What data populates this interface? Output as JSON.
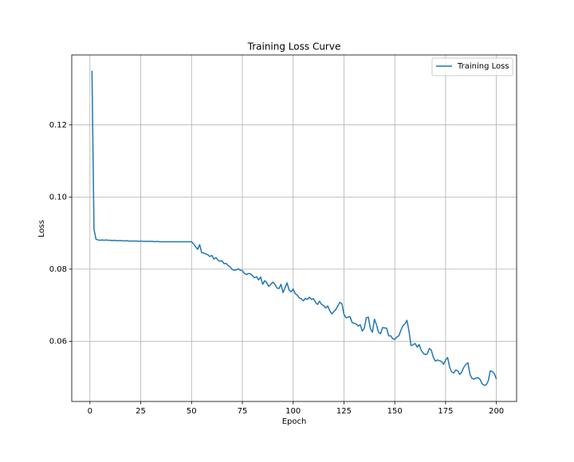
{
  "chart_data": {
    "type": "line",
    "title": "Training Loss Curve",
    "x_label": "Epoch",
    "y_label": "Loss",
    "x": [
      1,
      2,
      3,
      4,
      5,
      6,
      7,
      8,
      9,
      10,
      11,
      12,
      13,
      14,
      15,
      16,
      17,
      18,
      19,
      20,
      21,
      22,
      23,
      24,
      25,
      26,
      27,
      28,
      29,
      30,
      31,
      32,
      33,
      34,
      35,
      36,
      37,
      38,
      39,
      40,
      41,
      42,
      43,
      44,
      45,
      46,
      47,
      48,
      49,
      50,
      51,
      52,
      53,
      54,
      55,
      56,
      57,
      58,
      59,
      60,
      61,
      62,
      63,
      64,
      65,
      66,
      67,
      68,
      69,
      70,
      71,
      72,
      73,
      74,
      75,
      76,
      77,
      78,
      79,
      80,
      81,
      82,
      83,
      84,
      85,
      86,
      87,
      88,
      89,
      90,
      91,
      92,
      93,
      94,
      95,
      96,
      97,
      98,
      99,
      100,
      101,
      102,
      103,
      104,
      105,
      106,
      107,
      108,
      109,
      110,
      111,
      112,
      113,
      114,
      115,
      116,
      117,
      118,
      119,
      120,
      121,
      122,
      123,
      124,
      125,
      126,
      127,
      128,
      129,
      130,
      131,
      132,
      133,
      134,
      135,
      136,
      137,
      138,
      139,
      140,
      141,
      142,
      143,
      144,
      145,
      146,
      147,
      148,
      149,
      150,
      151,
      152,
      153,
      154,
      155,
      156,
      157,
      158,
      159,
      160,
      161,
      162,
      163,
      164,
      165,
      166,
      167,
      168,
      169,
      170,
      171,
      172,
      173,
      174,
      175,
      176,
      177,
      178,
      179,
      180,
      181,
      182,
      183,
      184,
      185,
      186,
      187,
      188,
      189,
      190,
      191,
      192,
      193,
      194,
      195,
      196,
      197,
      198,
      199,
      200
    ],
    "series": [
      {
        "name": "Training Loss",
        "color": "#1f77b4",
        "values": [
          0.135,
          0.091,
          0.0883,
          0.0881,
          0.088,
          0.0881,
          0.088,
          0.0881,
          0.088,
          0.088,
          0.0879,
          0.088,
          0.0879,
          0.0879,
          0.0879,
          0.0879,
          0.0878,
          0.0879,
          0.0878,
          0.0878,
          0.0878,
          0.0878,
          0.0878,
          0.0877,
          0.0878,
          0.0877,
          0.0877,
          0.0877,
          0.0877,
          0.0877,
          0.0877,
          0.0876,
          0.0877,
          0.0876,
          0.0876,
          0.0876,
          0.0876,
          0.0876,
          0.0876,
          0.0876,
          0.0876,
          0.0876,
          0.0876,
          0.0876,
          0.0876,
          0.0876,
          0.0876,
          0.0876,
          0.0876,
          0.0876,
          0.087,
          0.0862,
          0.0855,
          0.0868,
          0.0845,
          0.0845,
          0.0842,
          0.084,
          0.0835,
          0.0838,
          0.0828,
          0.0832,
          0.0825,
          0.0822,
          0.0823,
          0.0815,
          0.0816,
          0.081,
          0.0806,
          0.0799,
          0.0797,
          0.0798,
          0.0801,
          0.0797,
          0.0796,
          0.0788,
          0.0785,
          0.0788,
          0.0787,
          0.0782,
          0.0776,
          0.0779,
          0.077,
          0.0778,
          0.0758,
          0.0768,
          0.0762,
          0.0752,
          0.0758,
          0.0764,
          0.0758,
          0.0748,
          0.0746,
          0.0758,
          0.0735,
          0.0748,
          0.0762,
          0.0742,
          0.0737,
          0.0745,
          0.0732,
          0.0728,
          0.072,
          0.0718,
          0.0712,
          0.0719,
          0.0716,
          0.0722,
          0.0716,
          0.0718,
          0.0708,
          0.0702,
          0.0711,
          0.0702,
          0.0699,
          0.0692,
          0.0698,
          0.0685,
          0.0676,
          0.0682,
          0.0688,
          0.0698,
          0.0708,
          0.0704,
          0.0675,
          0.0665,
          0.0667,
          0.0668,
          0.0652,
          0.065,
          0.0648,
          0.0642,
          0.0646,
          0.0628,
          0.0636,
          0.0665,
          0.0667,
          0.0635,
          0.0625,
          0.0661,
          0.0646,
          0.0625,
          0.0621,
          0.0638,
          0.0637,
          0.0636,
          0.0615,
          0.0615,
          0.0607,
          0.0605,
          0.0612,
          0.0615,
          0.063,
          0.0643,
          0.0648,
          0.0658,
          0.0628,
          0.0588,
          0.059,
          0.0594,
          0.0584,
          0.0591,
          0.0575,
          0.0567,
          0.0563,
          0.0565,
          0.058,
          0.0575,
          0.0555,
          0.0545,
          0.0548,
          0.0546,
          0.0544,
          0.0536,
          0.0548,
          0.0555,
          0.0528,
          0.0515,
          0.0512,
          0.052,
          0.0518,
          0.0508,
          0.0515,
          0.0528,
          0.0536,
          0.054,
          0.0508,
          0.0497,
          0.0495,
          0.0498,
          0.0499,
          0.0494,
          0.0482,
          0.0478,
          0.0479,
          0.049,
          0.0518,
          0.0516,
          0.051,
          0.0495
        ]
      }
    ],
    "xlim": [
      -8.95,
      209.95
    ],
    "ylim": [
      0.0433,
      0.1394
    ],
    "xticks": [
      0,
      25,
      50,
      75,
      100,
      125,
      150,
      175,
      200
    ],
    "yticks": [
      0.06,
      0.08,
      {
        "value": 0.1,
        "label": "0.10"
      },
      0.12
    ],
    "grid": true,
    "legend": "upper right"
  }
}
